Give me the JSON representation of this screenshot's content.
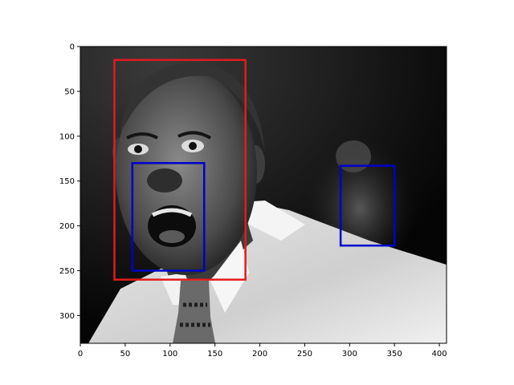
{
  "chart_data": {
    "type": "image",
    "title": "",
    "xlabel": "",
    "ylabel": "",
    "image": {
      "content": "grayscale photograph of a man in a white collared shirt and patterned tie, mouth wide open shouting; a blurred figure in the dark background on the right",
      "width": 408,
      "height": 331
    },
    "xlim": [
      0,
      408
    ],
    "ylim": [
      331,
      0
    ],
    "y_inverted": true,
    "xticks": [
      0,
      50,
      100,
      150,
      200,
      250,
      300,
      350,
      400
    ],
    "yticks": [
      0,
      50,
      100,
      150,
      200,
      250,
      300
    ],
    "boxes": [
      {
        "color": "#e41a1c",
        "x0": 38,
        "y0": 15,
        "x1": 184,
        "y1": 260
      },
      {
        "color": "#0000cc",
        "x0": 58,
        "y0": 130,
        "x1": 138,
        "y1": 250
      },
      {
        "color": "#0000cc",
        "x0": 290,
        "y0": 133,
        "x1": 350,
        "y1": 222
      }
    ]
  }
}
